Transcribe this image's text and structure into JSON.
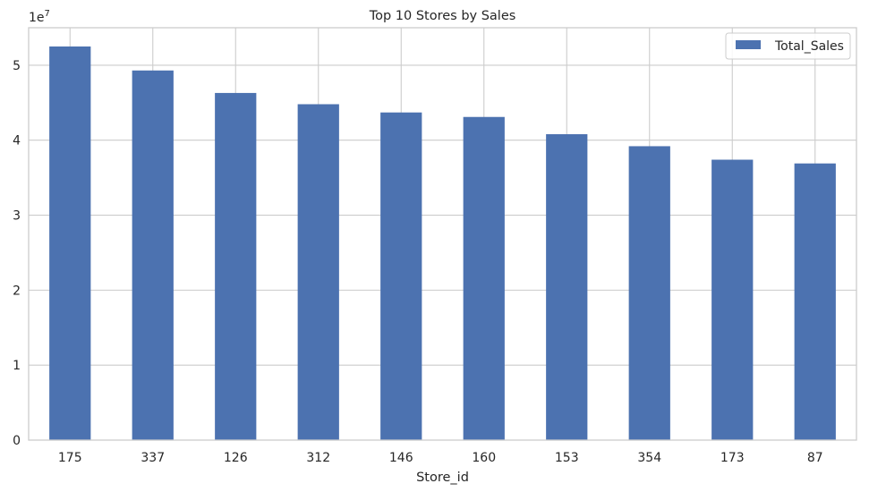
{
  "chart_data": {
    "type": "bar",
    "title": "Top 10 Stores by Sales",
    "xlabel": "Store_id",
    "ylabel": "",
    "offset_text": "1e7",
    "categories": [
      "175",
      "337",
      "126",
      "312",
      "146",
      "160",
      "153",
      "354",
      "173",
      "87"
    ],
    "series": [
      {
        "name": "Total_Sales",
        "values": [
          52500000,
          49300000,
          46300000,
          44800000,
          43700000,
          43100000,
          40800000,
          39200000,
          37400000,
          36900000
        ]
      }
    ],
    "yticks": [
      "0",
      "1",
      "2",
      "3",
      "4",
      "5"
    ],
    "ylim": [
      0,
      55000000
    ],
    "grid": true,
    "legend_position": "top-right",
    "colors": {
      "bar": "#4c72b0",
      "grid": "#cccccc",
      "spine": "#cccccc",
      "text": "#262626"
    }
  }
}
